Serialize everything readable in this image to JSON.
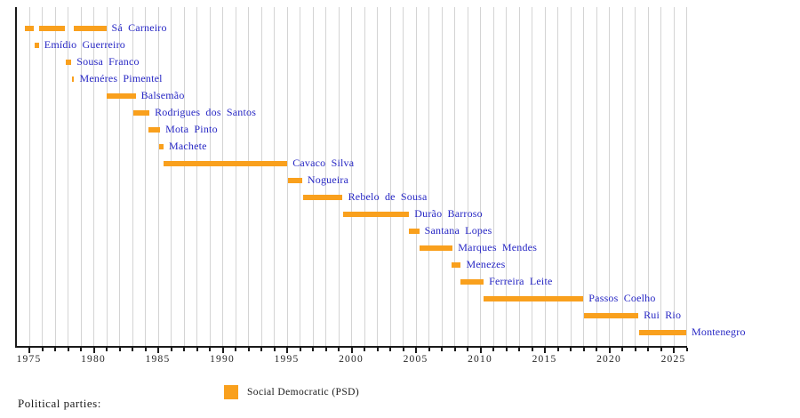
{
  "page": {
    "background": "#ffffff"
  },
  "colors": {
    "bar": "#F9A01D",
    "leader_label": "#2727C4",
    "grid": "#d4d4d4",
    "axis": "#1a1a1a",
    "tick_text": "#262626"
  },
  "legend": {
    "heading": "Political parties:",
    "items": [
      {
        "label": "Social Democratic (PSD)",
        "color": "#F9A01D"
      }
    ]
  },
  "chart_data": {
    "type": "timeline",
    "orientation": "horizontal-gantt",
    "grid": true,
    "x_axis": {
      "min": 1974,
      "max": 2026,
      "minor_tick_interval": 1,
      "major_tick_interval": 5,
      "major_ticks": [
        1975,
        1980,
        1985,
        1990,
        1995,
        2000,
        2005,
        2010,
        2015,
        2020,
        2025
      ],
      "tick_labels": [
        "1975",
        "1980",
        "1985",
        "1990",
        "1995",
        "2000",
        "2005",
        "2010",
        "2015",
        "2020",
        "2025"
      ]
    },
    "party": "Social Democratic (PSD)",
    "leaders": [
      {
        "name": "Sá Carneiro",
        "terms": [
          [
            1974.7,
            1975.4
          ],
          [
            1975.8,
            1977.8
          ],
          [
            1978.5,
            1981.0
          ]
        ]
      },
      {
        "name": "Emídio Guerreiro",
        "terms": [
          [
            1975.45,
            1975.78
          ]
        ]
      },
      {
        "name": "Sousa Franco",
        "terms": [
          [
            1977.88,
            1978.3
          ]
        ]
      },
      {
        "name": "Menéres Pimentel",
        "terms": [
          [
            1978.32,
            1978.52
          ]
        ]
      },
      {
        "name": "Balsemão",
        "terms": [
          [
            1981.0,
            1983.28
          ]
        ]
      },
      {
        "name": "Rodrigues dos Santos",
        "terms": [
          [
            1983.1,
            1984.35
          ]
        ]
      },
      {
        "name": "Mota Pinto",
        "terms": [
          [
            1984.26,
            1985.18
          ]
        ]
      },
      {
        "name": "Machete",
        "terms": [
          [
            1985.12,
            1985.45
          ]
        ]
      },
      {
        "name": "Cavaco Silva",
        "terms": [
          [
            1985.45,
            1995.05
          ]
        ]
      },
      {
        "name": "Nogueira",
        "terms": [
          [
            1995.1,
            1996.2
          ]
        ]
      },
      {
        "name": "Rebelo de Sousa",
        "terms": [
          [
            1996.25,
            1999.35
          ]
        ]
      },
      {
        "name": "Durão Barroso",
        "terms": [
          [
            1999.35,
            2004.5
          ]
        ]
      },
      {
        "name": "Santana Lopes",
        "terms": [
          [
            2004.45,
            2005.28
          ]
        ]
      },
      {
        "name": "Marques Mendes",
        "terms": [
          [
            2005.3,
            2007.88
          ]
        ]
      },
      {
        "name": "Menezes",
        "terms": [
          [
            2007.78,
            2008.52
          ]
        ]
      },
      {
        "name": "Ferreira Leite",
        "terms": [
          [
            2008.45,
            2010.28
          ]
        ]
      },
      {
        "name": "Passos Coelho",
        "terms": [
          [
            2010.28,
            2018.02
          ]
        ]
      },
      {
        "name": "Rui Rio",
        "terms": [
          [
            2018.05,
            2022.28
          ]
        ]
      },
      {
        "name": "Montenegro",
        "terms": [
          [
            2022.35,
            2026.0
          ]
        ]
      }
    ]
  }
}
